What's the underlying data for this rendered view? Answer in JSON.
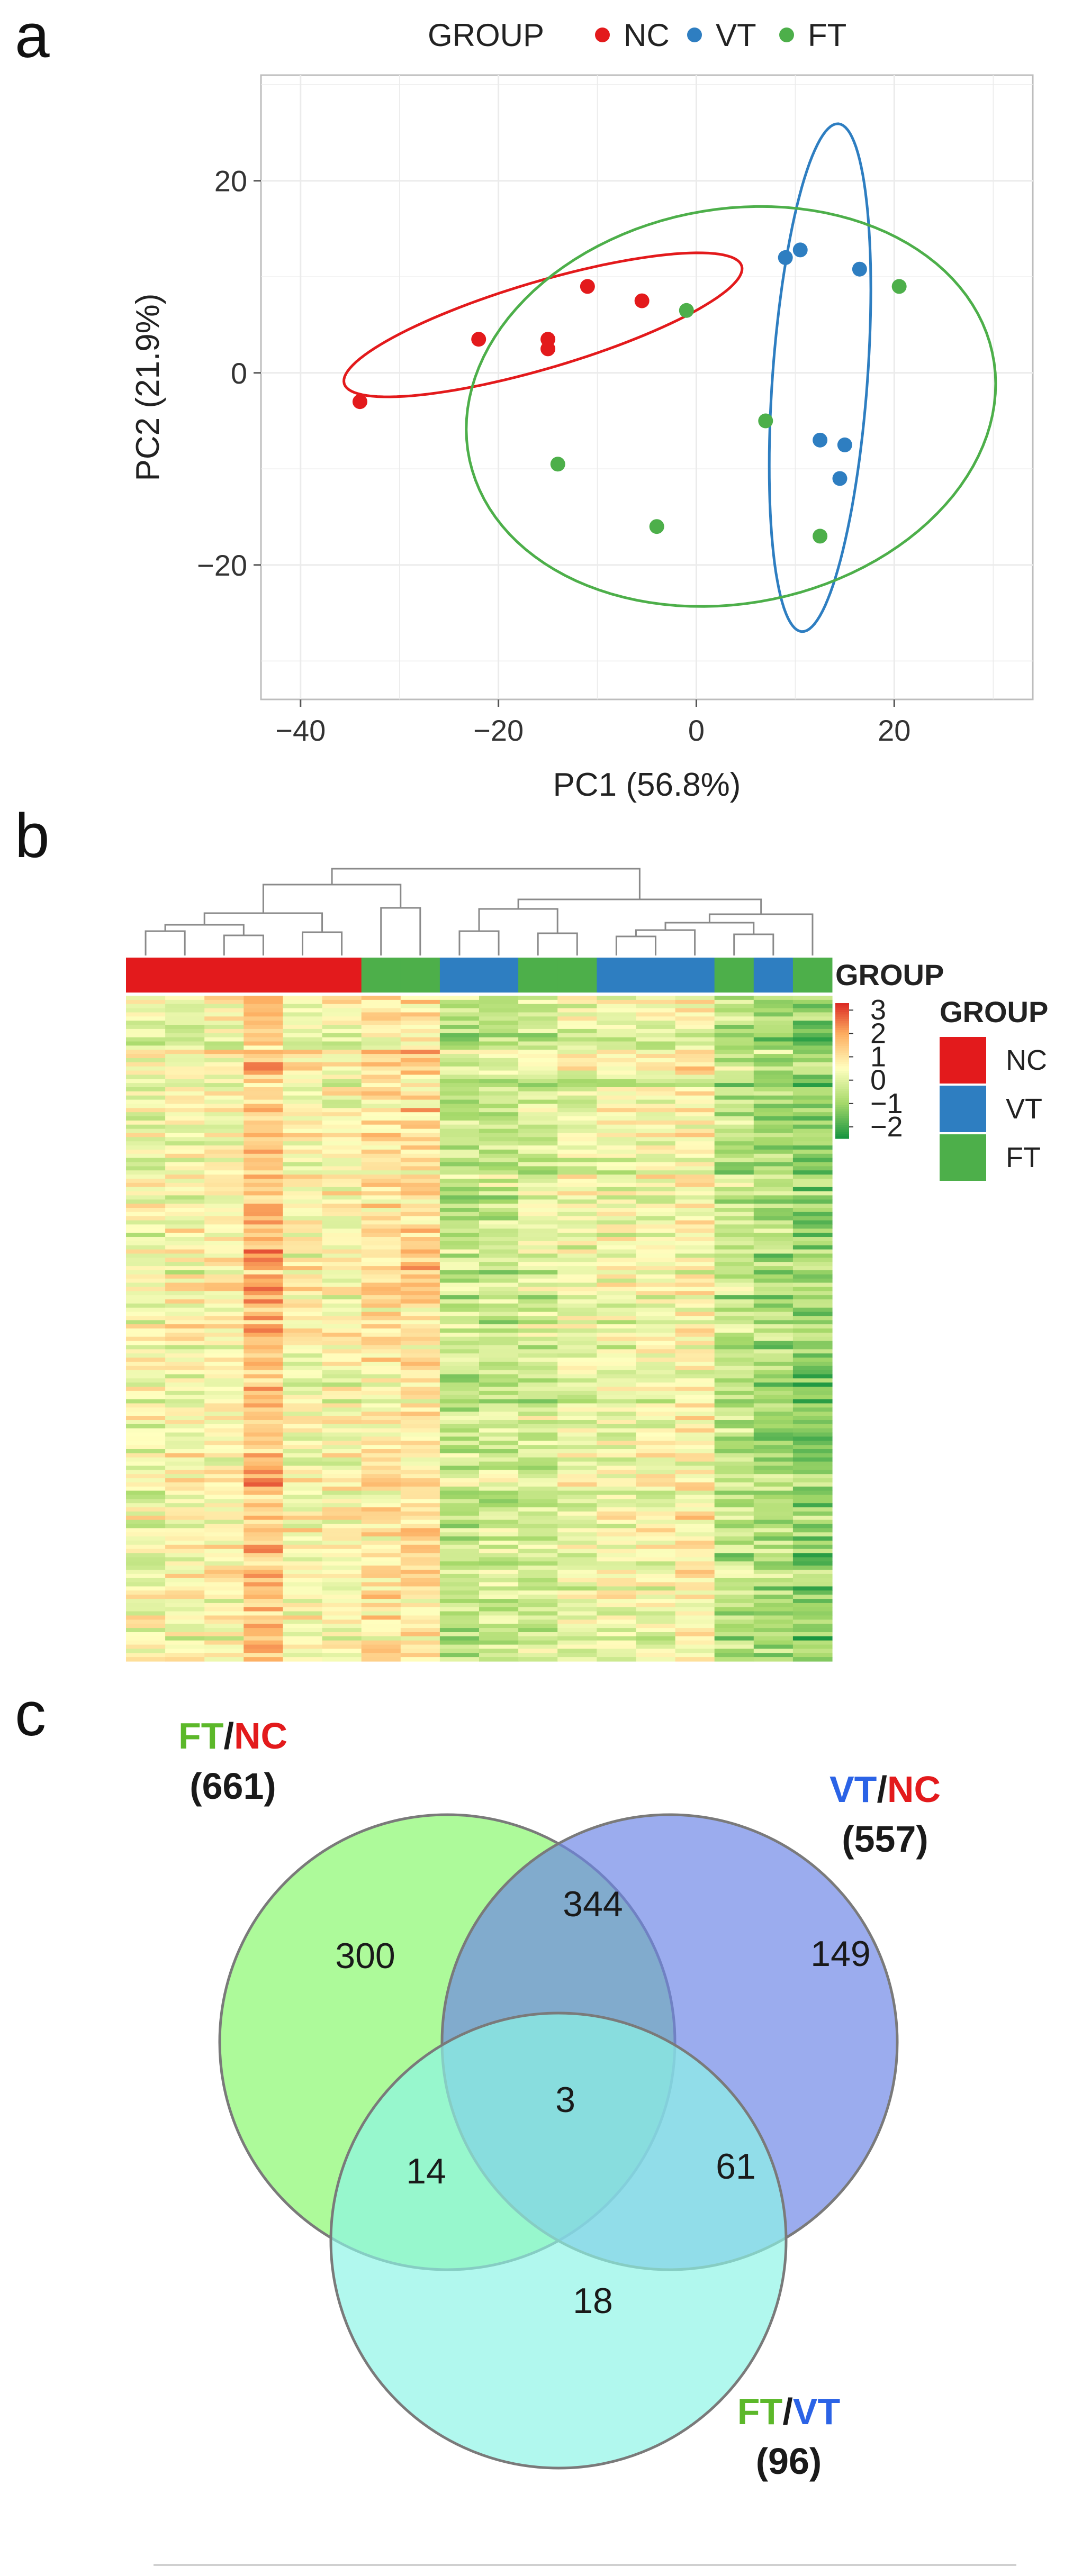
{
  "panels": {
    "a": "a",
    "b": "b",
    "c": "c"
  },
  "colors": {
    "NC": "#e31a1c",
    "VT": "#2e7ec1",
    "FT": "#4daf4a",
    "panel_bg": "#ffffff",
    "grid": "#ebebeb",
    "venn_dark": "#1a1a1a"
  },
  "chart_data": [
    {
      "panel": "a",
      "type": "scatter",
      "xlabel": "PC1 (56.8%)",
      "ylabel": "PC2 (21.9%)",
      "xlim": [
        -44,
        34
      ],
      "ylim": [
        -34,
        31
      ],
      "xticks": [
        -40,
        -20,
        0,
        20
      ],
      "yticks": [
        20,
        0,
        -20
      ],
      "xtick_labels": [
        "−40",
        "−20",
        "0",
        "20"
      ],
      "ytick_labels": [
        "20",
        "0",
        "−20"
      ],
      "grid": true,
      "legend": {
        "title": "GROUP",
        "position": "top",
        "items": [
          "NC",
          "VT",
          "FT"
        ]
      },
      "series": [
        {
          "name": "NC",
          "color": "#e31a1c",
          "points": [
            [
              -34,
              -3
            ],
            [
              -22,
              3.5
            ],
            [
              -15,
              3.5
            ],
            [
              -15,
              2.5
            ],
            [
              -11,
              9
            ],
            [
              -5.5,
              7.5
            ]
          ]
        },
        {
          "name": "VT",
          "color": "#2e7ec1",
          "points": [
            [
              9,
              12
            ],
            [
              10.5,
              12.8
            ],
            [
              16.5,
              10.8
            ],
            [
              12.5,
              -7
            ],
            [
              15,
              -7.5
            ],
            [
              14.5,
              -11
            ]
          ]
        },
        {
          "name": "FT",
          "color": "#4daf4a",
          "points": [
            [
              -1,
              6.5
            ],
            [
              20.5,
              9
            ],
            [
              7,
              -5
            ],
            [
              -14,
              -9.5
            ],
            [
              -4,
              -16
            ],
            [
              12.5,
              -17
            ]
          ]
        }
      ],
      "ellipses": [
        {
          "group": "NC",
          "cx": -15.5,
          "cy": 5,
          "rx": 21,
          "ry": 4.5,
          "angle": 17
        },
        {
          "group": "VT",
          "cx": 12.5,
          "cy": -0.5,
          "rx": 26.5,
          "ry": 4.8,
          "angle": 86
        },
        {
          "group": "FT",
          "cx": 3.5,
          "cy": -3.5,
          "rx": 27,
          "ry": 20.5,
          "angle": 12
        }
      ]
    },
    {
      "panel": "b",
      "type": "heatmap",
      "column_groups": [
        "NC",
        "NC",
        "NC",
        "NC",
        "NC",
        "NC",
        "FT",
        "FT",
        "VT",
        "VT",
        "FT",
        "FT",
        "VT",
        "VT",
        "VT",
        "FT",
        "VT",
        "FT"
      ],
      "annotation_label": "GROUP",
      "legend": {
        "title": "GROUP",
        "items": [
          "NC",
          "VT",
          "FT"
        ]
      },
      "colorbar": {
        "ticks": [
          3,
          2,
          1,
          0,
          -1,
          -2
        ],
        "tick_labels": [
          "3",
          "2",
          "1",
          "0",
          "−1",
          "−2"
        ],
        "colors": [
          "#1a9641",
          "#a6d96a",
          "#ffffbf",
          "#fdae61",
          "#d7191c"
        ]
      },
      "row_count": 160
    },
    {
      "panel": "c",
      "type": "venn",
      "sets": [
        {
          "name_parts": [
            "FT",
            "/",
            "NC"
          ],
          "name_colors": [
            "#5cb82a",
            "#1a1a1a",
            "#e31a1c"
          ],
          "size_label": "(661)",
          "fill": "#86f86a"
        },
        {
          "name_parts": [
            "VT",
            "/",
            "NC"
          ],
          "name_colors": [
            "#2b63e6",
            "#1a1a1a",
            "#e31a1c"
          ],
          "size_label": "(557)",
          "fill": "#6b84e6"
        },
        {
          "name_parts": [
            "FT",
            "/",
            "VT"
          ],
          "name_colors": [
            "#5cb82a",
            "#1a1a1a",
            "#2b63e6"
          ],
          "size_label": "(96)",
          "fill": "#8cf5e6"
        }
      ],
      "regions": [
        {
          "sets": [
            "FT/NC"
          ],
          "value": 300
        },
        {
          "sets": [
            "FT/NC",
            "VT/NC"
          ],
          "value": 344
        },
        {
          "sets": [
            "VT/NC"
          ],
          "value": 149
        },
        {
          "sets": [
            "FT/NC",
            "VT/NC",
            "FT/VT"
          ],
          "value": 3
        },
        {
          "sets": [
            "FT/NC",
            "FT/VT"
          ],
          "value": 14
        },
        {
          "sets": [
            "VT/NC",
            "FT/VT"
          ],
          "value": 61
        },
        {
          "sets": [
            "FT/VT"
          ],
          "value": 18
        }
      ]
    }
  ]
}
